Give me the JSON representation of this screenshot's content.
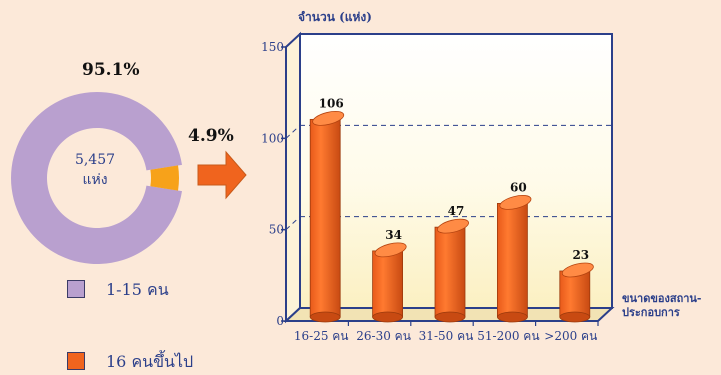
{
  "chart_data": [
    {
      "type": "pie",
      "center_label": [
        "5,457",
        "แห่ง"
      ],
      "slices": [
        {
          "label": "1-15 คน",
          "value": 95.1,
          "value_label": "95.1%",
          "color": "#b9a0cf"
        },
        {
          "label": "16 คนขึ้นไป",
          "value": 4.9,
          "value_label": "4.9%",
          "color": "#f7a21a"
        }
      ]
    },
    {
      "type": "bar",
      "ylabel": "จำนวน (แห่ง)",
      "xlabel": [
        "ขนาดของสถาน-",
        "ประกอบการ"
      ],
      "categories": [
        "16-25 คน",
        "26-30 คน",
        "31-50 คน",
        "51-200 คน",
        ">200 คน"
      ],
      "values": [
        106,
        34,
        47,
        60,
        23
      ],
      "value_labels": [
        "106",
        "34",
        "47",
        "60",
        "23"
      ],
      "ylim": [
        0,
        150
      ],
      "yticks": [
        "0",
        "50",
        "100",
        "150"
      ],
      "color": "#f0641e"
    }
  ],
  "legend": [
    {
      "label": "1-15 คน",
      "color": "#b9a0cf"
    },
    {
      "label": "16 คนขึ้นไป",
      "color": "#f0641e"
    }
  ]
}
